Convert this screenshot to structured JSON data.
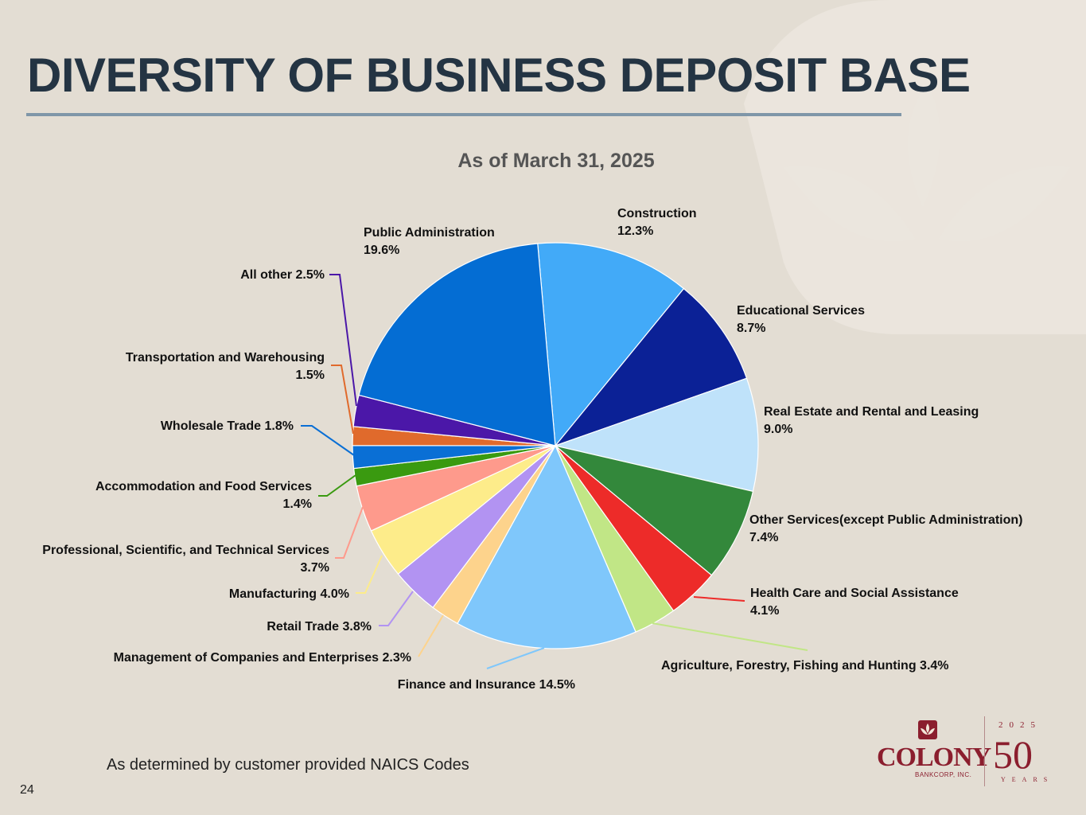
{
  "slide": {
    "title": "DIVERSITY OF BUSINESS DEPOSIT BASE",
    "footnote": "As determined by customer provided NAICS Codes",
    "page_number": "24"
  },
  "logo": {
    "brand": "COLONY",
    "sub": "BANKCORP, INC.",
    "year": "2025",
    "fifty": "50",
    "years": "YEARS"
  },
  "chart_data": {
    "type": "pie",
    "title": "As of March 31, 2025",
    "start_angle_deg": -5,
    "direction": "clockwise",
    "slices": [
      {
        "label": "Construction",
        "value": 12.3,
        "display": "12.3%",
        "color": "#42aaf8",
        "two_line": true
      },
      {
        "label": "Educational Services",
        "value": 8.7,
        "display": "8.7%",
        "color": "#0b2196",
        "two_line": true
      },
      {
        "label": "Real Estate and Rental and Leasing",
        "value": 9.0,
        "display": "9.0%",
        "color": "#bfe2fa",
        "two_line": true
      },
      {
        "label": "Other Services(except Public Administration)",
        "value": 7.4,
        "display": "7.4%",
        "color": "#33883b",
        "two_line": true
      },
      {
        "label": "Health Care and Social Assistance",
        "value": 4.1,
        "display": "4.1%",
        "color": "#ed2b29",
        "two_line": true
      },
      {
        "label": "Agriculture, Forestry, Fishing and Hunting",
        "value": 3.4,
        "display": "3.4%",
        "color": "#c1e686",
        "two_line": false
      },
      {
        "label": "Finance and Insurance",
        "value": 14.5,
        "display": "14.5%",
        "color": "#7fc7fb",
        "two_line": false
      },
      {
        "label": "Management of Companies and Enterprises",
        "value": 2.3,
        "display": "2.3%",
        "color": "#fdd38c",
        "two_line": false
      },
      {
        "label": "Retail Trade",
        "value": 3.8,
        "display": "3.8%",
        "color": "#b293f2",
        "two_line": false
      },
      {
        "label": "Manufacturing",
        "value": 4.0,
        "display": "4.0%",
        "color": "#fdec8a",
        "two_line": false
      },
      {
        "label": "Professional, Scientific, and Technical Services",
        "value": 3.7,
        "display": "3.7%",
        "color": "#fe9a8c",
        "two_line": true
      },
      {
        "label": "Accommodation and Food Services",
        "value": 1.4,
        "display": "1.4%",
        "color": "#3a9a10",
        "two_line": true
      },
      {
        "label": "Wholesale Trade",
        "value": 1.8,
        "display": "1.8%",
        "color": "#0a6fd5",
        "two_line": false
      },
      {
        "label": "Transportation and Warehousing",
        "value": 1.5,
        "display": "1.5%",
        "color": "#e06a2c",
        "two_line": true
      },
      {
        "label": "All other",
        "value": 2.5,
        "display": "2.5%",
        "color": "#4b17a8",
        "two_line": false
      },
      {
        "label": "Public Administration",
        "value": 19.6,
        "display": "19.6%",
        "color": "#046dd3",
        "two_line": true
      }
    ]
  }
}
